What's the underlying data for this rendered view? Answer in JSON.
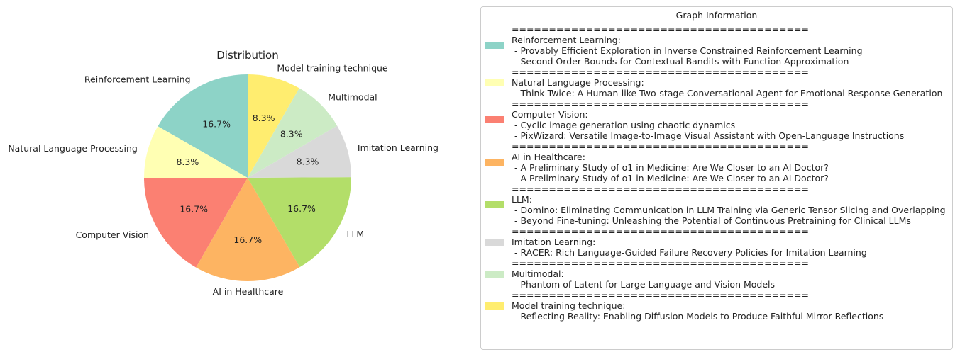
{
  "chart_data": {
    "type": "pie",
    "title": "Distribution",
    "categories": [
      "Reinforcement Learning",
      "Natural Language Processing",
      "Computer Vision",
      "AI in Healthcare",
      "LLM",
      "Imitation Learning",
      "Multimodal",
      "Model training technique"
    ],
    "values": [
      16.7,
      8.3,
      16.7,
      16.7,
      16.7,
      8.3,
      8.3,
      8.3
    ],
    "percent_labels": [
      "16.7%",
      "8.3%",
      "16.7%",
      "16.7%",
      "16.7%",
      "8.3%",
      "8.3%",
      "8.3%"
    ],
    "colors": [
      "#8dd3c7",
      "#ffffb3",
      "#fb8072",
      "#fdb462",
      "#b3de69",
      "#d9d9d9",
      "#ccebc5",
      "#ffed6f"
    ],
    "legend_placement": "right"
  },
  "legend": {
    "title": "Graph Information",
    "separator": "========================================",
    "entries": [
      {
        "category": "Reinforcement Learning:",
        "items": [
          " - Provably Efficient Exploration in Inverse Constrained Reinforcement Learning",
          " - Second Order Bounds for Contextual Bandits with Function Approximation"
        ]
      },
      {
        "category": "Natural Language Processing:",
        "items": [
          " - Think Twice: A Human-like Two-stage Conversational Agent for Emotional Response Generation"
        ]
      },
      {
        "category": "Computer Vision:",
        "items": [
          " - Cyclic image generation using chaotic dynamics",
          " - PixWizard: Versatile Image-to-Image Visual Assistant with Open-Language Instructions"
        ]
      },
      {
        "category": "AI in Healthcare:",
        "items": [
          " - A Preliminary Study of o1 in Medicine: Are We Closer to an AI Doctor?",
          " - A Preliminary Study of o1 in Medicine: Are We Closer to an AI Doctor?"
        ]
      },
      {
        "category": "LLM:",
        "items": [
          " - Domino: Eliminating Communication in LLM Training via Generic Tensor Slicing and Overlapping",
          " - Beyond Fine-tuning: Unleashing the Potential of Continuous Pretraining for Clinical LLMs"
        ]
      },
      {
        "category": "Imitation Learning:",
        "items": [
          " - RACER: Rich Language-Guided Failure Recovery Policies for Imitation Learning"
        ]
      },
      {
        "category": "Multimodal:",
        "items": [
          " - Phantom of Latent for Large Language and Vision Models"
        ]
      },
      {
        "category": "Model training technique:",
        "items": [
          " - Reflecting Reality: Enabling Diffusion Models to Produce Faithful Mirror Reflections"
        ]
      }
    ]
  }
}
